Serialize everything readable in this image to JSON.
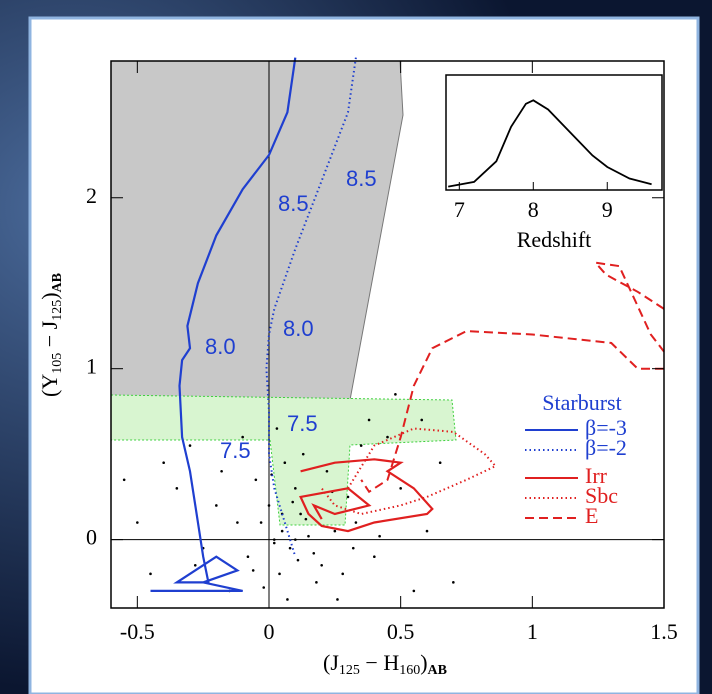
{
  "chart_data": [
    {
      "type": "scatter",
      "xlabel": [
        "(J",
        "125",
        " − H",
        "160",
        ")",
        "AB"
      ],
      "ylabel": [
        "(Y",
        "105",
        " − J",
        "125",
        ")",
        "AB"
      ],
      "xlim": [
        -0.6,
        1.5
      ],
      "ylim": [
        -0.4,
        2.8
      ],
      "xticks": [
        -0.5,
        0,
        0.5,
        1,
        1.5
      ],
      "yticks": [
        0,
        1,
        2
      ],
      "points": {
        "color": "#000000",
        "x": [
          0.05,
          0.02,
          -0.03,
          0.08,
          0.12,
          0.0,
          -0.08,
          0.15,
          0.1,
          0.04,
          -0.12,
          0.2,
          0.25,
          0.06,
          -0.05,
          0.3,
          0.18,
          -0.2,
          -0.35,
          -0.5,
          0.4,
          0.5,
          0.6,
          0.35,
          -0.15,
          0.22,
          0.45,
          -0.25,
          0.03,
          0.07,
          0.13,
          -0.02,
          0.28,
          0.55,
          0.65,
          -0.4,
          -0.3,
          0.1,
          0.33,
          0.01,
          -0.1,
          0.17,
          0.09,
          -0.45,
          0.48,
          0.38,
          -0.55,
          0.7,
          0.58,
          0.26,
          -0.18,
          0.05,
          0.11,
          0.24,
          0.32,
          -0.06,
          0.42,
          0.14,
          -0.28,
          0.02
        ],
        "y": [
          0.05,
          0.0,
          0.1,
          -0.05,
          0.15,
          0.2,
          -0.1,
          0.02,
          0.3,
          -0.2,
          0.1,
          -0.15,
          0.05,
          0.45,
          0.35,
          0.25,
          -0.25,
          0.2,
          0.3,
          0.1,
          -0.1,
          0.3,
          0.05,
          0.55,
          -0.3,
          0.4,
          0.6,
          -0.05,
          0.65,
          -0.35,
          0.5,
          -0.28,
          -0.2,
          -0.3,
          0.45,
          0.45,
          0.55,
          0.0,
          0.1,
          0.38,
          0.6,
          -0.08,
          0.22,
          -0.2,
          0.85,
          0.7,
          0.35,
          -0.25,
          0.7,
          -0.35,
          0.4,
          0.15,
          -0.12,
          0.28,
          -0.05,
          -0.18,
          0.02,
          0.12,
          -0.15,
          -0.02
        ]
      },
      "legend_title": "Starburst",
      "series": [
        {
          "name": "β=-3",
          "color": "#1f3fd0",
          "style": "solid",
          "x": [
            0.1,
            0.07,
            0.0,
            -0.1,
            -0.2,
            -0.27,
            -0.31,
            -0.3,
            -0.33,
            -0.34,
            -0.33,
            -0.3,
            -0.28,
            -0.25,
            -0.23,
            -0.35,
            -0.2,
            -0.12,
            -0.25,
            -0.1,
            -0.45
          ],
          "y": [
            2.82,
            2.5,
            2.25,
            2.05,
            1.78,
            1.5,
            1.25,
            1.12,
            1.05,
            0.9,
            0.6,
            0.4,
            0.2,
            -0.1,
            -0.25,
            -0.25,
            -0.1,
            -0.18,
            -0.25,
            -0.3,
            -0.3
          ]
        },
        {
          "name": "β=-2",
          "color": "#1f3fd0",
          "style": "dotted",
          "x": [
            0.33,
            0.3,
            0.2,
            0.1,
            0.02,
            0.0,
            -0.01,
            0.0,
            0.0,
            0.02,
            0.05,
            0.08,
            0.1
          ],
          "y": [
            2.82,
            2.5,
            2.1,
            1.7,
            1.35,
            1.2,
            1.0,
            0.75,
            0.5,
            0.3,
            0.15,
            0.0,
            -0.1
          ]
        },
        {
          "name": "Irr",
          "color": "#e02020",
          "style": "solid",
          "x": [
            0.12,
            0.25,
            0.4,
            0.5,
            0.45,
            0.55,
            0.62,
            0.6,
            0.4,
            0.3,
            0.2,
            0.15,
            0.12,
            0.3,
            0.38,
            0.25,
            0.17,
            0.2
          ],
          "y": [
            0.4,
            0.45,
            0.47,
            0.45,
            0.4,
            0.3,
            0.18,
            0.15,
            0.1,
            0.05,
            0.08,
            0.15,
            0.25,
            0.3,
            0.2,
            0.15,
            0.2,
            0.12
          ]
        },
        {
          "name": "Sbc",
          "color": "#e02020",
          "style": "dotted",
          "x": [
            0.3,
            0.4,
            0.55,
            0.7,
            0.82,
            0.86,
            0.75,
            0.6,
            0.5,
            0.35,
            0.25,
            0.2
          ],
          "y": [
            0.3,
            0.55,
            0.65,
            0.63,
            0.5,
            0.43,
            0.35,
            0.25,
            0.2,
            0.15,
            0.2,
            0.3
          ]
        },
        {
          "name": "E",
          "color": "#e02020",
          "style": "dashed",
          "x": [
            1.5,
            1.4,
            1.3,
            1.0,
            0.75,
            0.62,
            0.55,
            0.5,
            0.45,
            0.38,
            0.35,
            null,
            1.5,
            1.4,
            1.28,
            1.24,
            1.33,
            1.45,
            1.5
          ],
          "y": [
            1.0,
            1.0,
            1.15,
            1.2,
            1.22,
            1.12,
            0.9,
            0.6,
            0.35,
            0.28,
            0.35,
            null,
            1.35,
            1.45,
            1.55,
            1.62,
            1.6,
            1.2,
            1.1
          ]
        }
      ],
      "annotations": [
        "8.5",
        "8.5",
        "8.0",
        "8.0",
        "7.5",
        "7.5"
      ]
    },
    {
      "type": "line",
      "xlabel": "Redshift",
      "xlim": [
        6.82,
        9.74
      ],
      "ylim": [
        0,
        1
      ],
      "xticks": [
        7,
        8,
        9
      ],
      "color": "#000000",
      "x": [
        6.85,
        7.2,
        7.5,
        7.7,
        7.9,
        8.0,
        8.2,
        8.5,
        8.8,
        9.0,
        9.3,
        9.6
      ],
      "y": [
        0.03,
        0.07,
        0.25,
        0.55,
        0.75,
        0.78,
        0.7,
        0.5,
        0.3,
        0.2,
        0.1,
        0.05
      ]
    }
  ]
}
